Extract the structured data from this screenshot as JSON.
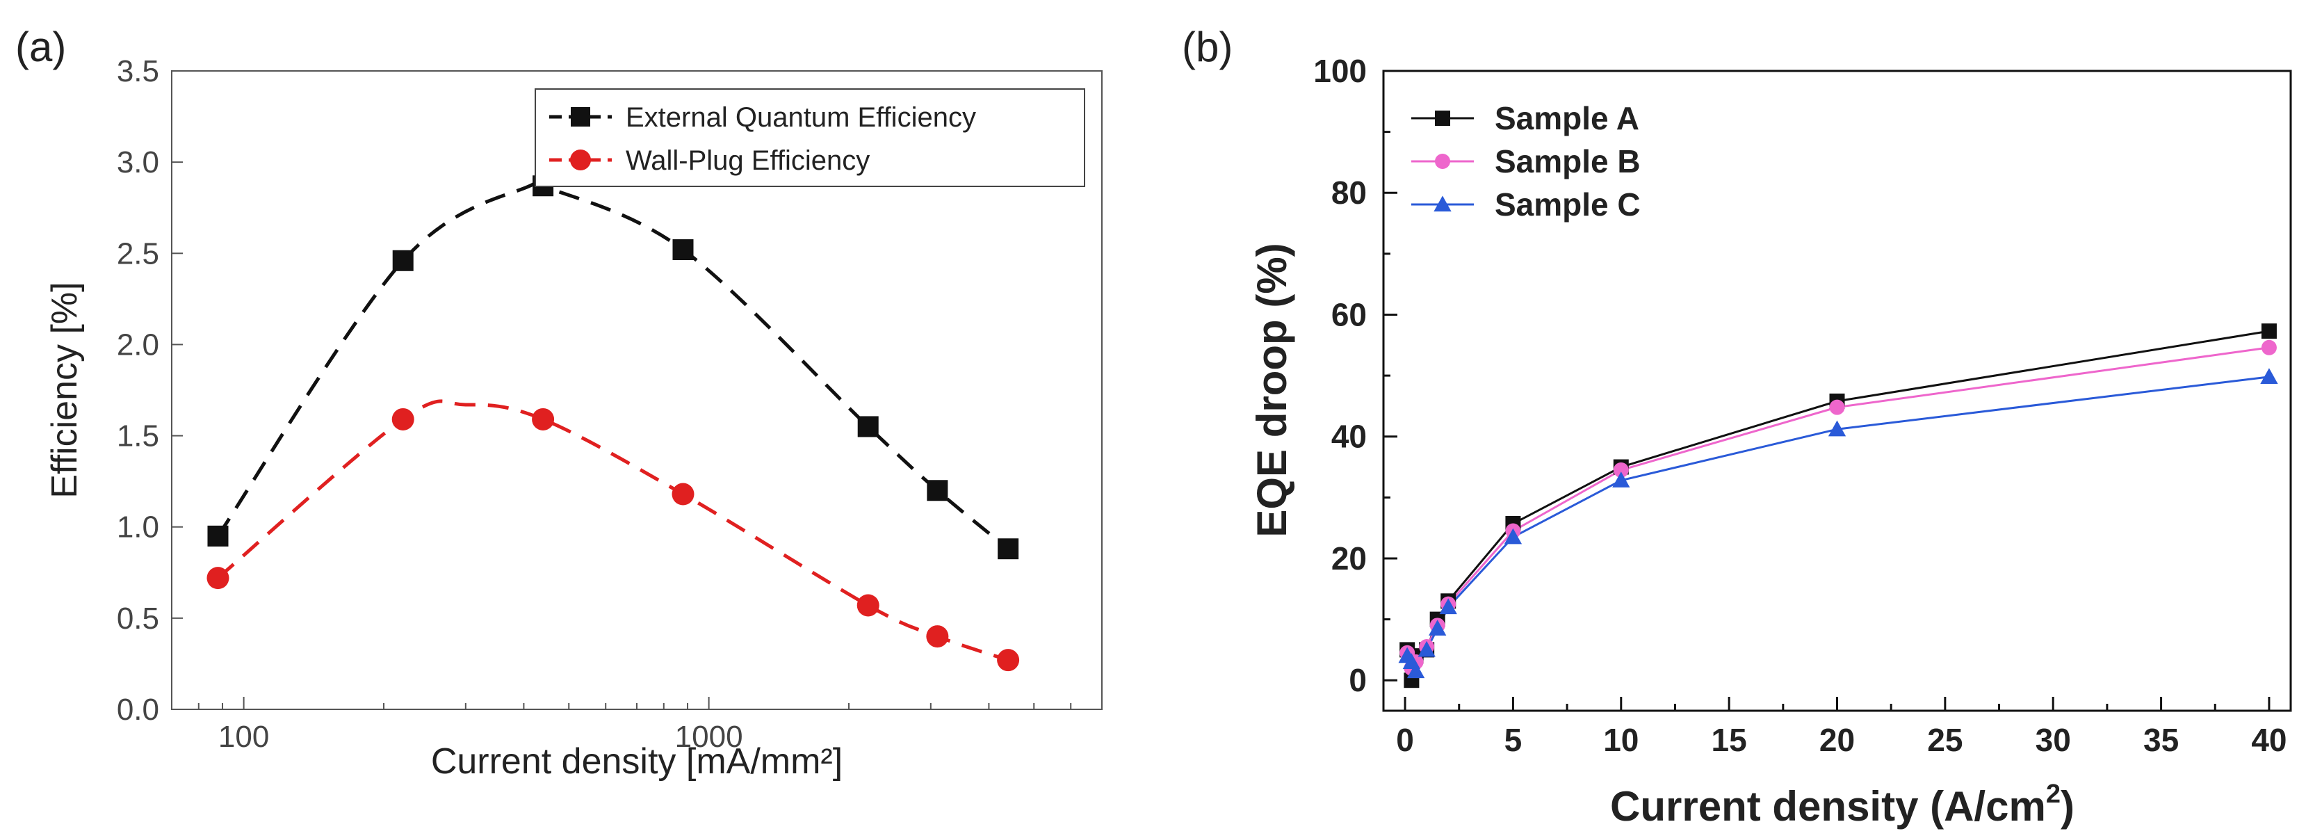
{
  "chart_data": [
    {
      "panel_label": "(a)",
      "type": "scatter",
      "x_scale": "log",
      "xlabel": "Current density [mA/mm²]",
      "ylabel": "Efficiency [%]",
      "xlim": [
        70,
        7000
      ],
      "ylim": [
        0.0,
        3.5
      ],
      "xticks": [
        100,
        1000
      ],
      "xtick_labels": [
        "100",
        "1000"
      ],
      "yticks": [
        0.0,
        0.5,
        1.0,
        1.5,
        2.0,
        2.5,
        3.0,
        3.5
      ],
      "ytick_labels": [
        "0.0",
        "0.5",
        "1.0",
        "1.5",
        "2.0",
        "2.5",
        "3.0",
        "3.5"
      ],
      "legend_position": "top-right",
      "series": [
        {
          "name": "External Quantum Efficiency",
          "color": "#111111",
          "marker": "square",
          "line": "dashed-fit",
          "x": [
            88,
            220,
            440,
            880,
            2200,
            3100,
            4400
          ],
          "y": [
            0.95,
            2.46,
            2.87,
            2.52,
            1.55,
            1.2,
            0.88
          ],
          "fit_peak": [
            420,
            2.88
          ]
        },
        {
          "name": "Wall-Plug Efficiency",
          "color": "#e02020",
          "marker": "circle",
          "line": "dashed-fit",
          "x": [
            88,
            220,
            440,
            880,
            2200,
            3100,
            4400
          ],
          "y": [
            0.72,
            1.59,
            1.59,
            1.18,
            0.57,
            0.4,
            0.27
          ],
          "fit_peak": [
            300,
            1.67
          ]
        }
      ]
    },
    {
      "panel_label": "(b)",
      "type": "line",
      "xlabel": "Current density (A/cm",
      "xlabel_sup": "2",
      "xlabel_close": ")",
      "ylabel": "EQE droop (%)",
      "xlim": [
        -1,
        41
      ],
      "ylim": [
        -5,
        100
      ],
      "xticks": [
        0,
        5,
        10,
        15,
        20,
        25,
        30,
        35,
        40
      ],
      "xtick_labels": [
        "0",
        "5",
        "10",
        "15",
        "20",
        "25",
        "30",
        "35",
        "40"
      ],
      "yticks": [
        0,
        20,
        40,
        60,
        80,
        100
      ],
      "ytick_labels": [
        "0",
        "20",
        "40",
        "60",
        "80",
        "100"
      ],
      "legend_position": "top-left",
      "series": [
        {
          "name": "Sample A",
          "color": "#111111",
          "marker": "square",
          "x": [
            0.1,
            0.3,
            0.5,
            1,
            1.5,
            2,
            5,
            10,
            20,
            40
          ],
          "y": [
            5,
            0,
            4,
            5,
            10,
            13,
            25.7,
            35,
            45.8,
            57.3
          ]
        },
        {
          "name": "Sample B",
          "color": "#ee66cc",
          "marker": "circle",
          "x": [
            0.1,
            0.3,
            0.5,
            1,
            1.5,
            2,
            5,
            10,
            20,
            40
          ],
          "y": [
            4.5,
            2,
            3,
            5.5,
            9,
            12.5,
            24.5,
            34.5,
            44.8,
            54.6
          ]
        },
        {
          "name": "Sample C",
          "color": "#2a5ad8",
          "marker": "triangle",
          "x": [
            0.1,
            0.3,
            0.5,
            1,
            1.5,
            2,
            5,
            10,
            20,
            40
          ],
          "y": [
            4,
            3,
            1.5,
            5,
            8.5,
            12,
            23.5,
            32.8,
            41.2,
            49.8
          ]
        }
      ]
    }
  ]
}
